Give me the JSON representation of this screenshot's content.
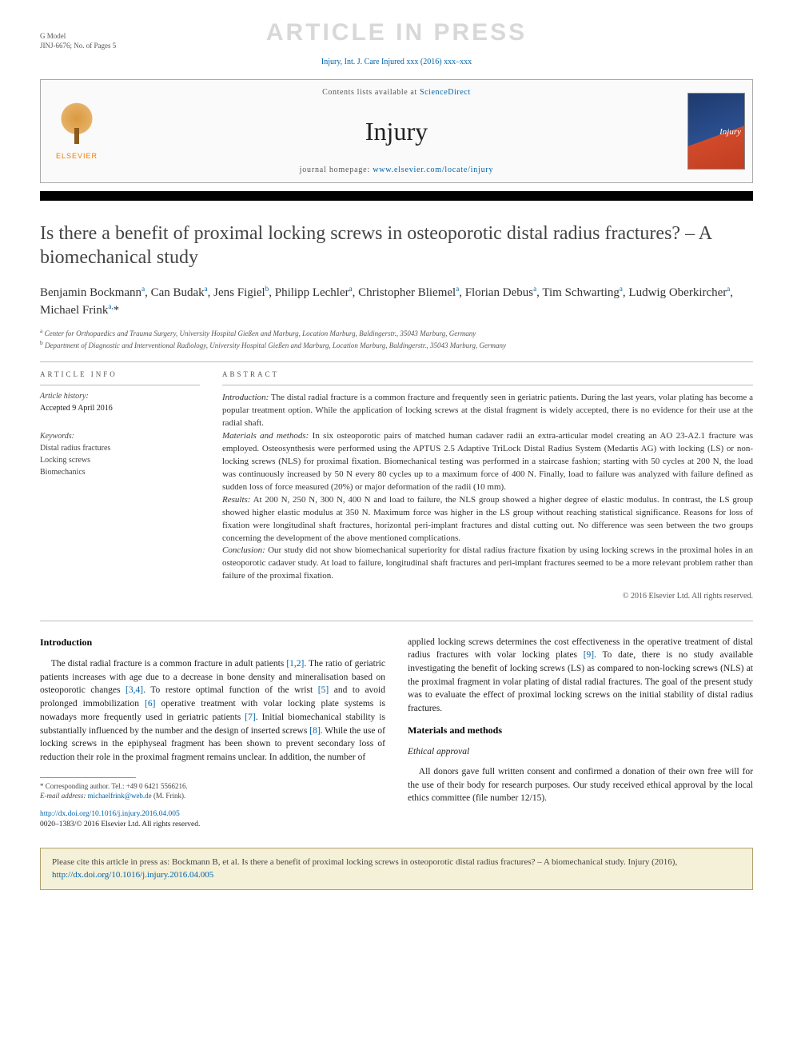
{
  "header": {
    "gmodel": "G Model",
    "article_id": "JINJ-6676; No. of Pages 5",
    "watermark": "ARTICLE IN PRESS",
    "journal_ref": "Injury, Int. J. Care Injured xxx (2016) xxx–xxx"
  },
  "banner": {
    "contents_prefix": "Contents lists available at ",
    "contents_link": "ScienceDirect",
    "journal_name": "Injury",
    "homepage_prefix": "journal homepage: ",
    "homepage_url": "www.elsevier.com/locate/injury",
    "elsevier_label": "ELSEVIER",
    "cover_label": "Injury"
  },
  "article": {
    "title": "Is there a benefit of proximal locking screws in osteoporotic distal radius fractures? – A biomechanical study",
    "authors_html": "Benjamin Bockmann<sup>a</sup>, Can Budak<sup>a</sup>, Jens Figiel<sup>b</sup>, Philipp Lechler<sup>a</sup>, Christopher Bliemel<sup>a</sup>, Florian Debus<sup>a</sup>, Tim Schwarting<sup>a</sup>, Ludwig Oberkircher<sup>a</sup>, Michael Frink<sup>a,</sup><span class='star'>*</span>",
    "affiliations": [
      "a Center for Orthopaedics and Trauma Surgery, University Hospital Gießen and Marburg, Location Marburg, Baldingerstr., 35043 Marburg, Germany",
      "b Department of Diagnostic and Interventional Radiology, University Hospital Gießen and Marburg, Location Marburg, Baldingerstr., 35043 Marburg, Germany"
    ]
  },
  "info": {
    "head": "ARTICLE INFO",
    "history_label": "Article history:",
    "history_value": "Accepted 9 April 2016",
    "keywords_label": "Keywords:",
    "keywords": [
      "Distal radius fractures",
      "Locking screws",
      "Biomechanics"
    ]
  },
  "abstract": {
    "head": "ABSTRACT",
    "intro_label": "Introduction:",
    "intro": "The distal radial fracture is a common fracture and frequently seen in geriatric patients. During the last years, volar plating has become a popular treatment option. While the application of locking screws at the distal fragment is widely accepted, there is no evidence for their use at the radial shaft.",
    "methods_label": "Materials and methods:",
    "methods": "In six osteoporotic pairs of matched human cadaver radii an extra-articular model creating an AO 23-A2.1 fracture was employed. Osteosynthesis were performed using the APTUS 2.5 Adaptive TriLock Distal Radius System (Medartis AG) with locking (LS) or non-locking screws (NLS) for proximal fixation. Biomechanical testing was performed in a staircase fashion; starting with 50 cycles at 200 N, the load was continuously increased by 50 N every 80 cycles up to a maximum force of 400 N. Finally, load to failure was analyzed with failure defined as sudden loss of force measured (20%) or major deformation of the radii (10 mm).",
    "results_label": "Results:",
    "results": "At 200 N, 250 N, 300 N, 400 N and load to failure, the NLS group showed a higher degree of elastic modulus. In contrast, the LS group showed higher elastic modulus at 350 N. Maximum force was higher in the LS group without reaching statistical significance. Reasons for loss of fixation were longitudinal shaft fractures, horizontal peri-implant fractures and distal cutting out. No difference was seen between the two groups concerning the development of the above mentioned complications.",
    "conclusion_label": "Conclusion:",
    "conclusion": "Our study did not show biomechanical superiority for distal radius fracture fixation by using locking screws in the proximal holes in an osteoporotic cadaver study. At load to failure, longitudinal shaft fractures and peri-implant fractures seemed to be a more relevant problem rather than failure of the proximal fixation.",
    "copyright": "© 2016 Elsevier Ltd. All rights reserved."
  },
  "body": {
    "intro_head": "Introduction",
    "intro_p1": "The distal radial fracture is a common fracture in adult patients [1,2]. The ratio of geriatric patients increases with age due to a decrease in bone density and mineralisation based on osteoporotic changes [3,4]. To restore optimal function of the wrist [5] and to avoid prolonged immobilization [6] operative treatment with volar locking plate systems is nowadays more frequently used in geriatric patients [7]. Initial biomechanical stability is substantially influenced by the number and the design of inserted screws [8]. While the use of locking screws in the epiphyseal fragment has been shown to prevent secondary loss of reduction their role in the proximal fragment remains unclear. In addition, the number of",
    "intro_p2": "applied locking screws determines the cost effectiveness in the operative treatment of distal radius fractures with volar locking plates [9]. To date, there is no study available investigating the benefit of locking screws (LS) as compared to non-locking screws (NLS) at the proximal fragment in volar plating of distal radial fractures. The goal of the present study was to evaluate the effect of proximal locking screws on the initial stability of distal radius fractures.",
    "mm_head": "Materials and methods",
    "ethics_head": "Ethical approval",
    "ethics_p": "All donors gave full written consent and confirmed a donation of their own free will for the use of their body for research purposes. Our study received ethical approval by the local ethics committee (file number 12/15)."
  },
  "footnote": {
    "corr": "* Corresponding author. Tel.: +49 0 6421 5566216.",
    "email_label": "E-mail address:",
    "email": "michaelfrink@web.de",
    "email_suffix": "(M. Frink)."
  },
  "doi": {
    "url": "http://dx.doi.org/10.1016/j.injury.2016.04.005",
    "issn": "0020–1383/© 2016 Elsevier Ltd. All rights reserved."
  },
  "citebox": {
    "text": "Please cite this article in press as: Bockmann B, et al. Is there a benefit of proximal locking screws in osteoporotic distal radius fractures? – A biomechanical study. Injury (2016), ",
    "link": "http://dx.doi.org/10.1016/j.injury.2016.04.005"
  },
  "colors": {
    "link": "#0064a8",
    "elsevier_orange": "#ee7d00",
    "citebox_bg": "#f5f0d8",
    "citebox_border": "#b0a070"
  }
}
